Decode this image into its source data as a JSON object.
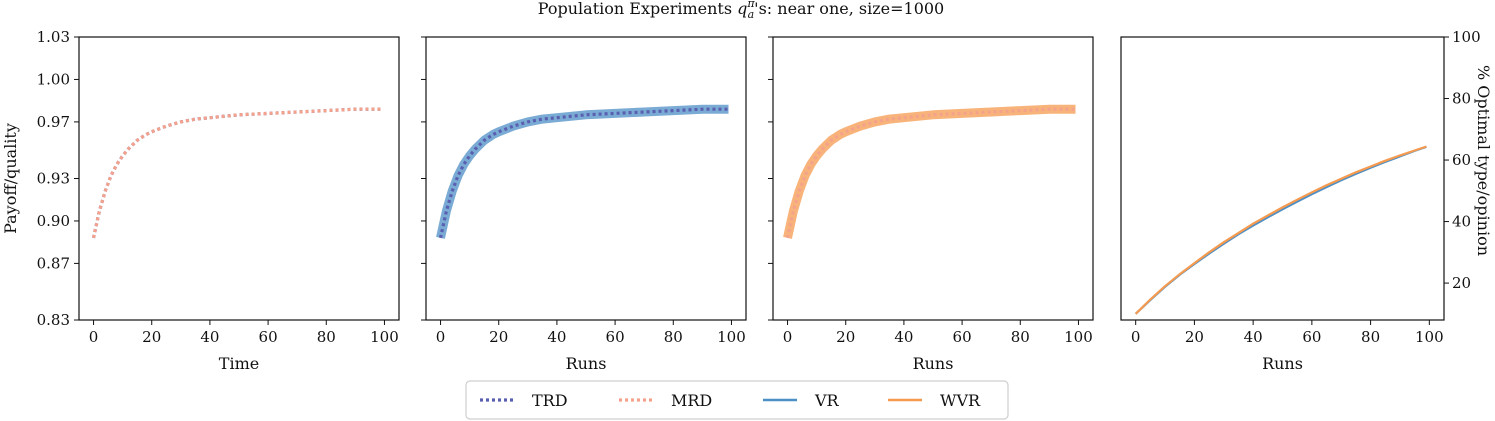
{
  "figure_title": "Population Experiments qₐ^π's: near one, size=1000",
  "title_parts": {
    "pre": "Population Experiments ",
    "q": "q",
    "sup": "π",
    "sub": "a",
    "post": "'s: near one, size=1000"
  },
  "colors": {
    "TRD": "#5a5fb0",
    "MRD": "#f4a28c",
    "VR": "#4e8fc5",
    "WVR": "#f59a4e"
  },
  "legend": [
    {
      "key": "TRD",
      "label": "TRD",
      "style": "dotted"
    },
    {
      "key": "MRD",
      "label": "MRD",
      "style": "dotted"
    },
    {
      "key": "VR",
      "label": "VR",
      "style": "solid"
    },
    {
      "key": "WVR",
      "label": "WVR",
      "style": "solid"
    }
  ],
  "chart_data": [
    {
      "type": "line",
      "panel": "panel-1",
      "title": "",
      "xlabel": "Time",
      "ylabel": "Payoff/quality",
      "xlim": [
        -5,
        105
      ],
      "ylim": [
        0.83,
        1.03
      ],
      "xticks": [
        0,
        20,
        40,
        60,
        80,
        100
      ],
      "yticks": [
        0.83,
        0.87,
        0.9,
        0.93,
        0.97,
        1.0,
        1.03
      ],
      "ytick_labels": [
        "0.83",
        "0.87",
        "0.90",
        "0.93",
        "0.97",
        "1.00",
        "1.03"
      ],
      "x": [
        0,
        2,
        4,
        6,
        8,
        10,
        12,
        15,
        18,
        20,
        25,
        30,
        35,
        40,
        50,
        60,
        70,
        80,
        90,
        99
      ],
      "series": [
        {
          "name": "TRD",
          "style": "dotted",
          "values": [
            0.888,
            0.907,
            0.921,
            0.932,
            0.94,
            0.946,
            0.951,
            0.957,
            0.961,
            0.963,
            0.967,
            0.97,
            0.972,
            0.973,
            0.975,
            0.976,
            0.977,
            0.978,
            0.979,
            0.979
          ]
        },
        {
          "name": "MRD",
          "style": "dotted",
          "values": [
            0.888,
            0.907,
            0.921,
            0.932,
            0.94,
            0.946,
            0.951,
            0.957,
            0.961,
            0.963,
            0.967,
            0.97,
            0.972,
            0.973,
            0.975,
            0.976,
            0.977,
            0.978,
            0.979,
            0.979
          ]
        }
      ]
    },
    {
      "type": "line",
      "panel": "panel-2",
      "xlabel": "Runs",
      "xlim": [
        -5,
        105
      ],
      "ylim": [
        0.83,
        1.03
      ],
      "xticks": [
        0,
        20,
        40,
        60,
        80,
        100
      ],
      "x": [
        0,
        2,
        4,
        6,
        8,
        10,
        12,
        15,
        18,
        20,
        25,
        30,
        35,
        40,
        50,
        60,
        70,
        80,
        90,
        99
      ],
      "series": [
        {
          "name": "VR",
          "style": "band",
          "values": [
            0.888,
            0.907,
            0.921,
            0.932,
            0.94,
            0.946,
            0.951,
            0.957,
            0.961,
            0.963,
            0.967,
            0.97,
            0.972,
            0.973,
            0.975,
            0.976,
            0.977,
            0.978,
            0.979,
            0.979
          ]
        },
        {
          "name": "TRD",
          "style": "dotted",
          "values": [
            0.888,
            0.907,
            0.921,
            0.932,
            0.94,
            0.946,
            0.951,
            0.957,
            0.961,
            0.963,
            0.967,
            0.97,
            0.972,
            0.973,
            0.975,
            0.976,
            0.977,
            0.978,
            0.979,
            0.979
          ]
        }
      ]
    },
    {
      "type": "line",
      "panel": "panel-3",
      "xlabel": "Runs",
      "xlim": [
        -5,
        105
      ],
      "ylim": [
        0.83,
        1.03
      ],
      "xticks": [
        0,
        20,
        40,
        60,
        80,
        100
      ],
      "x": [
        0,
        2,
        4,
        6,
        8,
        10,
        12,
        15,
        18,
        20,
        25,
        30,
        35,
        40,
        50,
        60,
        70,
        80,
        90,
        99
      ],
      "series": [
        {
          "name": "WVR",
          "style": "band",
          "values": [
            0.888,
            0.907,
            0.921,
            0.932,
            0.94,
            0.946,
            0.951,
            0.957,
            0.961,
            0.963,
            0.967,
            0.97,
            0.972,
            0.973,
            0.975,
            0.976,
            0.977,
            0.978,
            0.979,
            0.979
          ]
        },
        {
          "name": "MRD",
          "style": "dotted",
          "values": [
            0.888,
            0.907,
            0.921,
            0.932,
            0.94,
            0.946,
            0.951,
            0.957,
            0.961,
            0.963,
            0.967,
            0.97,
            0.972,
            0.973,
            0.975,
            0.976,
            0.977,
            0.978,
            0.979,
            0.979
          ]
        }
      ]
    },
    {
      "type": "line",
      "panel": "panel-4",
      "xlabel": "Runs",
      "ylabel": "% Optimal type/opinion",
      "ylabel_side": "right",
      "xlim": [
        -5,
        105
      ],
      "ylim": [
        8,
        100
      ],
      "xticks": [
        0,
        20,
        40,
        60,
        80,
        100
      ],
      "yticks": [
        20,
        40,
        60,
        80,
        100
      ],
      "ytick_labels": [
        "20",
        "40",
        "60",
        "80",
        "100"
      ],
      "x": [
        0,
        5,
        10,
        15,
        20,
        25,
        30,
        35,
        40,
        45,
        50,
        55,
        60,
        65,
        70,
        75,
        80,
        85,
        90,
        95,
        99
      ],
      "series": [
        {
          "name": "VR",
          "style": "solid",
          "values": [
            10.0,
            14.5,
            18.8,
            22.7,
            26.2,
            29.6,
            32.8,
            35.9,
            38.7,
            41.4,
            44.0,
            46.5,
            48.9,
            51.2,
            53.4,
            55.5,
            57.5,
            59.4,
            61.2,
            63.0,
            64.3
          ]
        },
        {
          "name": "WVR",
          "style": "solid",
          "values": [
            10.0,
            14.7,
            19.0,
            22.9,
            26.5,
            30.0,
            33.3,
            36.3,
            39.3,
            42.0,
            44.6,
            47.1,
            49.5,
            51.8,
            53.9,
            56.0,
            57.9,
            59.8,
            61.5,
            63.1,
            64.4
          ]
        }
      ]
    }
  ]
}
